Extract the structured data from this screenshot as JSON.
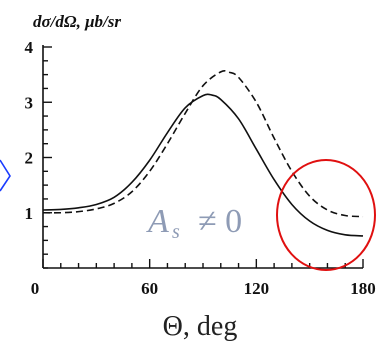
{
  "chart_data": {
    "type": "line",
    "ylabel": "dσ/dΩ, μb/sr",
    "xlabel": "Θ, deg",
    "xlim": [
      0,
      180
    ],
    "ylim": [
      0,
      4
    ],
    "x_ticks": [
      0,
      60,
      120,
      180
    ],
    "x_tick_labels": [
      "0",
      "60",
      "120",
      "180"
    ],
    "y_ticks": [
      1,
      2,
      3,
      4
    ],
    "y_tick_labels": [
      "1",
      "2",
      "3",
      "4"
    ],
    "grid": false,
    "series": [
      {
        "style": "solid",
        "x": [
          0,
          10,
          20,
          30,
          40,
          50,
          60,
          70,
          80,
          90,
          95,
          100,
          110,
          120,
          130,
          140,
          150,
          160,
          170,
          180
        ],
        "y": [
          1.05,
          1.06,
          1.09,
          1.15,
          1.28,
          1.55,
          1.95,
          2.45,
          2.9,
          3.12,
          3.13,
          3.05,
          2.7,
          2.15,
          1.6,
          1.15,
          0.85,
          0.68,
          0.6,
          0.58
        ]
      },
      {
        "style": "dashed",
        "x": [
          0,
          10,
          20,
          30,
          40,
          50,
          60,
          70,
          80,
          90,
          100,
          105,
          110,
          120,
          130,
          140,
          150,
          160,
          170,
          180
        ],
        "y": [
          1.0,
          1.0,
          1.02,
          1.07,
          1.17,
          1.38,
          1.75,
          2.25,
          2.8,
          3.3,
          3.55,
          3.54,
          3.45,
          3.0,
          2.35,
          1.75,
          1.3,
          1.05,
          0.95,
          0.93
        ]
      }
    ],
    "annotation": {
      "main": "A",
      "sub": "s",
      "relation": "≠ 0"
    },
    "colors": {
      "axis": "#111111",
      "curves": "#111111",
      "circle": "#e01010",
      "annotation": "#8e9bb5",
      "arrow": "#1a3cff"
    }
  }
}
